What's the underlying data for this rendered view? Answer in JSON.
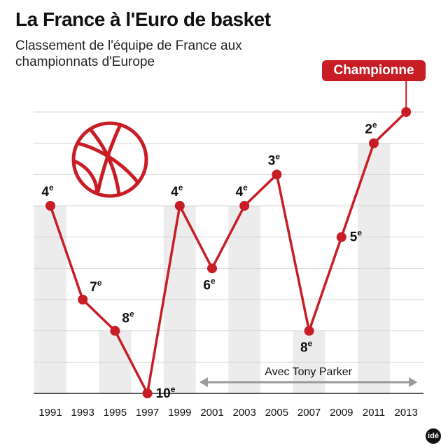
{
  "title": "La France à l'Euro de basket",
  "subtitle": "Classement de l'équipe de France aux championnats d'Europe",
  "badge": "Championne",
  "annotation": "Avec Tony Parker",
  "logo": "idé",
  "colors": {
    "line": "#c81d25",
    "bar": "#ececec",
    "grid": "#d4d4d4",
    "arrow": "#9a9a9a",
    "text": "#111111"
  },
  "chart_data": {
    "type": "line",
    "title": "La France à l'Euro de basket",
    "subtitle": "Classement de l'équipe de France aux championnats d'Europe",
    "xlabel": "",
    "ylabel": "",
    "ylim": [
      1,
      10
    ],
    "y_inverted": true,
    "grid": true,
    "x": [
      "1991",
      "1993",
      "1995",
      "1997",
      "1999",
      "2001",
      "2003",
      "2005",
      "2007",
      "2009",
      "2011",
      "2013"
    ],
    "values": [
      4,
      7,
      8,
      10,
      4,
      6,
      4,
      3,
      8,
      5,
      2,
      1
    ],
    "point_labels": [
      {
        "num": "4",
        "sup": "e",
        "pos": "above"
      },
      {
        "num": "7",
        "sup": "e",
        "pos": "right-above"
      },
      {
        "num": "8",
        "sup": "e",
        "pos": "right-above"
      },
      {
        "num": "10",
        "sup": "e",
        "pos": "right"
      },
      {
        "num": "4",
        "sup": "e",
        "pos": "above"
      },
      {
        "num": "6",
        "sup": "e",
        "pos": "below"
      },
      {
        "num": "4",
        "sup": "e",
        "pos": "above"
      },
      {
        "num": "3",
        "sup": "e",
        "pos": "above"
      },
      {
        "num": "8",
        "sup": "e",
        "pos": "below"
      },
      {
        "num": "5",
        "sup": "e",
        "pos": "right"
      },
      {
        "num": "2",
        "sup": "e",
        "pos": "above"
      },
      {
        "num": "Championne",
        "sup": "",
        "pos": "badge"
      }
    ],
    "annotation": {
      "text": "Avec Tony Parker",
      "from": "2001",
      "to": "2013"
    }
  }
}
